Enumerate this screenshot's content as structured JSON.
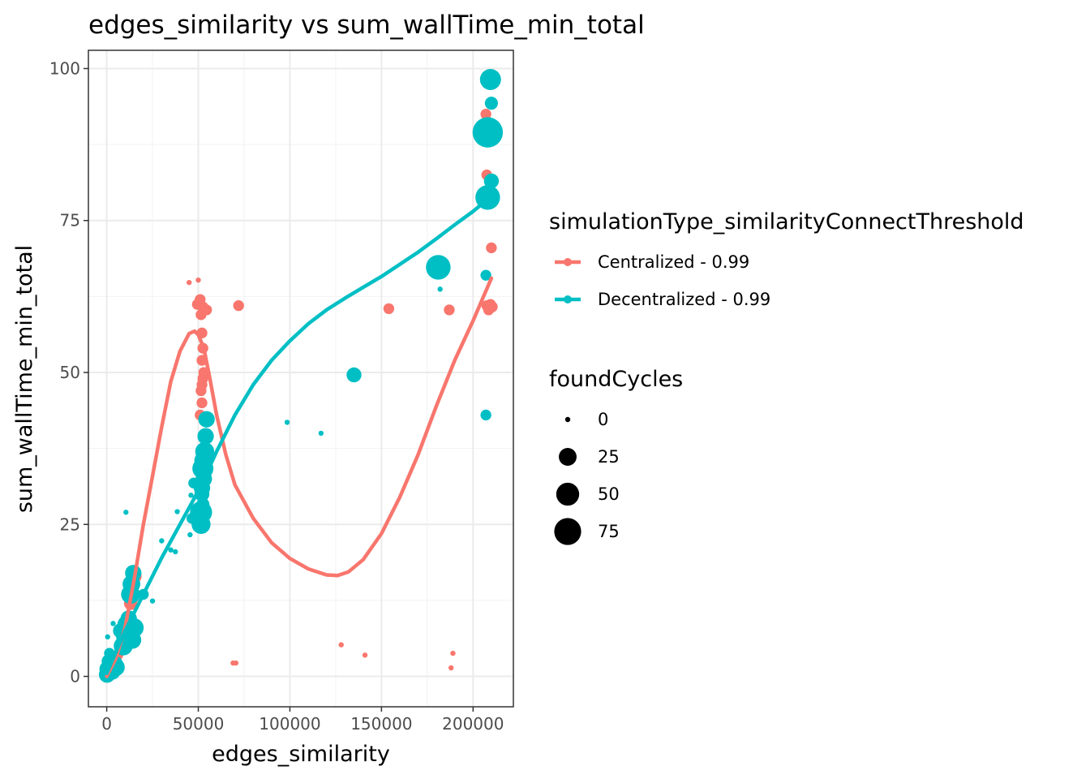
{
  "chart_data": {
    "type": "scatter",
    "title": "edges_similarity  vs  sum_wallTime_min_total",
    "xlabel": "edges_similarity",
    "ylabel": "sum_wallTime_min_total",
    "xlim": [
      -10000,
      222000
    ],
    "ylim": [
      -5,
      103
    ],
    "xticks": [
      0,
      50000,
      100000,
      150000,
      200000
    ],
    "xtick_labels": [
      "0",
      "50000",
      "100000",
      "150000",
      "200000"
    ],
    "yticks": [
      0,
      25,
      50,
      75,
      100
    ],
    "ytick_labels": [
      "0",
      "25",
      "50",
      "75",
      "100"
    ],
    "grid": true,
    "legend_placement": "right",
    "color_legend": {
      "title": "simulationType_similarityConnectThreshold",
      "entries": [
        {
          "label": "Centralized - 0.99",
          "color": "#F8766D"
        },
        {
          "label": "Decentralized - 0.99",
          "color": "#00BFC4"
        }
      ]
    },
    "size_legend": {
      "title": "foundCycles",
      "entries": [
        {
          "label": "0",
          "value": 0
        },
        {
          "label": "25",
          "value": 25
        },
        {
          "label": "50",
          "value": 50
        },
        {
          "label": "75",
          "value": 75
        }
      ]
    },
    "series": [
      {
        "name": "Centralized - 0.99",
        "color": "#F8766D",
        "points": [
          [
            200,
            0.2,
            0
          ],
          [
            1000,
            0.8,
            2
          ],
          [
            3000,
            1.5,
            5
          ],
          [
            6000,
            3.5,
            5
          ],
          [
            9000,
            6.5,
            8
          ],
          [
            11000,
            9,
            8
          ],
          [
            13000,
            12,
            10
          ],
          [
            14000,
            13,
            10
          ],
          [
            15000,
            16.5,
            15
          ],
          [
            45000,
            64.8,
            0
          ],
          [
            50000,
            65.2,
            0
          ],
          [
            49500,
            61.2,
            5
          ],
          [
            51000,
            62,
            5
          ],
          [
            52500,
            60.8,
            5
          ],
          [
            54500,
            60.3,
            5
          ],
          [
            51500,
            59.5,
            5
          ],
          [
            72000,
            61,
            5
          ],
          [
            52000,
            56.5,
            5
          ],
          [
            52500,
            54,
            5
          ],
          [
            52000,
            52,
            5
          ],
          [
            53000,
            50,
            5
          ],
          [
            52500,
            49,
            5
          ],
          [
            52000,
            48,
            5
          ],
          [
            51500,
            47,
            5
          ],
          [
            52000,
            45,
            5
          ],
          [
            51000,
            43,
            5
          ],
          [
            69000,
            2.2,
            0
          ],
          [
            70500,
            2.2,
            0
          ],
          [
            128000,
            5.2,
            0
          ],
          [
            141000,
            3.5,
            0
          ],
          [
            154000,
            60.5,
            5
          ],
          [
            187000,
            60.3,
            5
          ],
          [
            188000,
            1.4,
            0
          ],
          [
            189000,
            3.8,
            0
          ],
          [
            207000,
            92.5,
            5
          ],
          [
            207500,
            82.5,
            5
          ],
          [
            210000,
            70.5,
            5
          ],
          [
            207500,
            61,
            5
          ],
          [
            209500,
            61.2,
            5
          ],
          [
            208500,
            60.3,
            5
          ],
          [
            210500,
            60.8,
            5
          ]
        ],
        "smooth": [
          [
            0,
            0
          ],
          [
            5000,
            3
          ],
          [
            10000,
            8
          ],
          [
            15000,
            16
          ],
          [
            20000,
            25
          ],
          [
            25000,
            33
          ],
          [
            30000,
            41
          ],
          [
            35000,
            48.5
          ],
          [
            40000,
            53.5
          ],
          [
            45000,
            56.4
          ],
          [
            48000,
            56.8
          ],
          [
            50000,
            56.2
          ],
          [
            53000,
            54
          ],
          [
            56000,
            49.5
          ],
          [
            60000,
            43
          ],
          [
            65000,
            36.5
          ],
          [
            70000,
            31.5
          ],
          [
            80000,
            26
          ],
          [
            90000,
            22
          ],
          [
            100000,
            19.4
          ],
          [
            110000,
            17.7
          ],
          [
            120000,
            16.7
          ],
          [
            126000,
            16.6
          ],
          [
            132000,
            17.2
          ],
          [
            140000,
            19.2
          ],
          [
            150000,
            23.5
          ],
          [
            160000,
            29.5
          ],
          [
            170000,
            36.5
          ],
          [
            180000,
            44.5
          ],
          [
            190000,
            52
          ],
          [
            200000,
            58.5
          ],
          [
            210000,
            65.5
          ]
        ]
      },
      {
        "name": "Decentralized - 0.99",
        "color": "#00BFC4",
        "points": [
          [
            200,
            0.3,
            20
          ],
          [
            500,
            1.2,
            20
          ],
          [
            800,
            2.5,
            10
          ],
          [
            1500,
            3.8,
            5
          ],
          [
            500,
            6.5,
            0
          ],
          [
            2500,
            1.5,
            20
          ],
          [
            3000,
            0.8,
            20
          ],
          [
            4000,
            2,
            25
          ],
          [
            5000,
            1.5,
            25
          ],
          [
            3500,
            8.7,
            0
          ],
          [
            7500,
            7.5,
            15
          ],
          [
            9000,
            5,
            30
          ],
          [
            10000,
            6.5,
            25
          ],
          [
            11000,
            8.5,
            30
          ],
          [
            12000,
            9.5,
            20
          ],
          [
            13000,
            7.5,
            30
          ],
          [
            14000,
            6,
            25
          ],
          [
            15000,
            8,
            30
          ],
          [
            10500,
            27,
            0
          ],
          [
            13000,
            13.5,
            30
          ],
          [
            13500,
            15.2,
            25
          ],
          [
            14500,
            17,
            20
          ],
          [
            20000,
            13.5,
            5
          ],
          [
            25000,
            12.4,
            0
          ],
          [
            30000,
            22.3,
            0
          ],
          [
            35000,
            20.8,
            0
          ],
          [
            37500,
            20.5,
            0
          ],
          [
            38500,
            27.1,
            0
          ],
          [
            45500,
            23.3,
            0
          ],
          [
            46000,
            29.8,
            0
          ],
          [
            47500,
            31.8,
            5
          ],
          [
            46500,
            26,
            5
          ],
          [
            51500,
            25,
            30
          ],
          [
            51500,
            27,
            45
          ],
          [
            52500,
            28.3,
            10
          ],
          [
            52000,
            30,
            15
          ],
          [
            52000,
            31,
            20
          ],
          [
            53000,
            32.5,
            20
          ],
          [
            52500,
            34.2,
            40
          ],
          [
            53000,
            35.5,
            30
          ],
          [
            53500,
            37,
            30
          ],
          [
            54000,
            39.5,
            20
          ],
          [
            54500,
            42.3,
            20
          ],
          [
            98500,
            41.8,
            0
          ],
          [
            117000,
            40,
            0
          ],
          [
            135000,
            49.6,
            15
          ],
          [
            181000,
            67.3,
            60
          ],
          [
            182000,
            63.7,
            0
          ],
          [
            207000,
            43,
            5
          ],
          [
            207000,
            66,
            5
          ],
          [
            208000,
            78.8,
            60
          ],
          [
            208000,
            89.5,
            100
          ],
          [
            209500,
            98.2,
            40
          ],
          [
            210000,
            94.3,
            10
          ],
          [
            210000,
            81.5,
            15
          ]
        ],
        "smooth": [
          [
            0,
            0.5
          ],
          [
            5000,
            4
          ],
          [
            10000,
            7.5
          ],
          [
            20000,
            13.5
          ],
          [
            30000,
            19.5
          ],
          [
            40000,
            25
          ],
          [
            50000,
            30.5
          ],
          [
            60000,
            37
          ],
          [
            70000,
            43
          ],
          [
            80000,
            48
          ],
          [
            90000,
            52
          ],
          [
            100000,
            55.2
          ],
          [
            110000,
            58
          ],
          [
            120000,
            60.3
          ],
          [
            130000,
            62.2
          ],
          [
            140000,
            64
          ],
          [
            150000,
            65.8
          ],
          [
            160000,
            67.8
          ],
          [
            170000,
            69.8
          ],
          [
            180000,
            72
          ],
          [
            190000,
            74.3
          ],
          [
            200000,
            76.5
          ],
          [
            210000,
            79
          ]
        ]
      }
    ]
  }
}
